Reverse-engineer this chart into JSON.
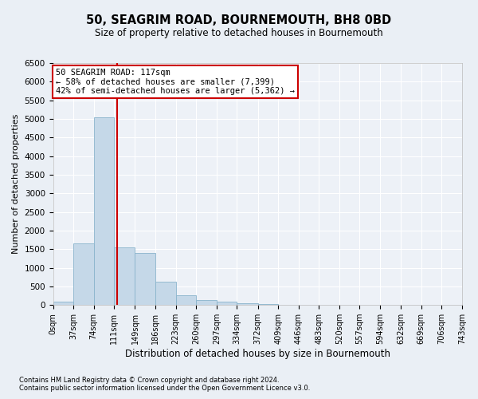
{
  "title": "50, SEAGRIM ROAD, BOURNEMOUTH, BH8 0BD",
  "subtitle": "Size of property relative to detached houses in Bournemouth",
  "xlabel": "Distribution of detached houses by size in Bournemouth",
  "ylabel": "Number of detached properties",
  "footnote1": "Contains HM Land Registry data © Crown copyright and database right 2024.",
  "footnote2": "Contains public sector information licensed under the Open Government Licence v3.0.",
  "annotation_line1": "50 SEAGRIM ROAD: 117sqm",
  "annotation_line2": "← 58% of detached houses are smaller (7,399)",
  "annotation_line3": "42% of semi-detached houses are larger (5,362) →",
  "bar_color": "#c5d8e8",
  "bar_edge_color": "#8ab4cc",
  "vline_color": "#cc0000",
  "vline_x": 117,
  "bin_edges": [
    0,
    37,
    74,
    111,
    149,
    186,
    223,
    260,
    297,
    334,
    372,
    409,
    446,
    483,
    520,
    557,
    594,
    632,
    669,
    706,
    743
  ],
  "bin_labels": [
    "0sqm",
    "37sqm",
    "74sqm",
    "111sqm",
    "149sqm",
    "186sqm",
    "223sqm",
    "260sqm",
    "297sqm",
    "334sqm",
    "372sqm",
    "409sqm",
    "446sqm",
    "483sqm",
    "520sqm",
    "557sqm",
    "594sqm",
    "632sqm",
    "669sqm",
    "706sqm",
    "743sqm"
  ],
  "bar_heights": [
    100,
    1650,
    5050,
    1550,
    1400,
    620,
    270,
    140,
    100,
    50,
    30,
    10,
    0,
    0,
    0,
    0,
    0,
    0,
    0,
    0
  ],
  "ylim": [
    0,
    6500
  ],
  "yticks": [
    0,
    500,
    1000,
    1500,
    2000,
    2500,
    3000,
    3500,
    4000,
    4500,
    5000,
    5500,
    6000,
    6500
  ],
  "bg_color": "#eaeff5",
  "axes_bg_color": "#edf1f7",
  "grid_color": "#ffffff",
  "annotation_box_color": "#ffffff",
  "annotation_box_edge": "#cc0000",
  "title_fontsize": 10.5,
  "subtitle_fontsize": 8.5
}
